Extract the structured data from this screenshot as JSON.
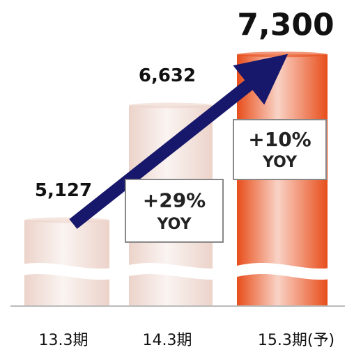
{
  "chart_data": {
    "type": "bar",
    "categories": [
      "13.3期",
      "14.3期",
      "15.3期(予)"
    ],
    "values": [
      5127,
      6632,
      7300
    ],
    "value_labels": [
      "5,127",
      "6,632",
      "7,300"
    ],
    "colors": [
      "#ecd3ca",
      "#ecd3ca",
      "#e84e1b"
    ],
    "ylim": [
      4000,
      7800
    ],
    "annotations": [
      {
        "lines": [
          "+29%",
          "YOY"
        ]
      },
      {
        "lines": [
          "+10%",
          "YOY"
        ]
      }
    ]
  }
}
